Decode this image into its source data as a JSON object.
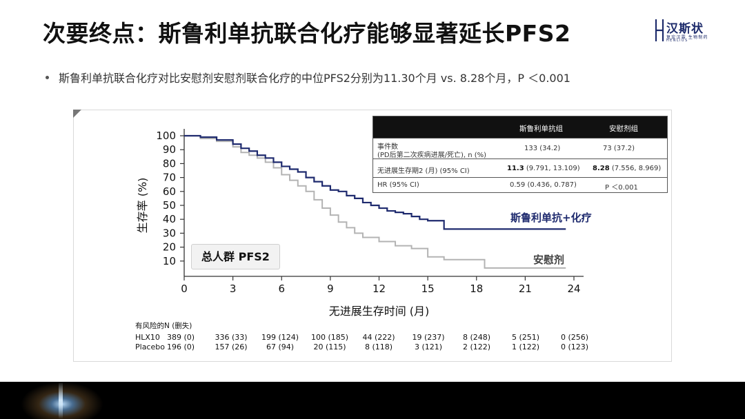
{
  "slide": {
    "title": "次要终点：斯鲁利单抗联合化疗能够显著延长PFS2",
    "bullet": "斯鲁利单抗联合化疗对比安慰剂安慰剂联合化疗的中位PFS2分别为11.30个月 vs. 8.28个月，P ＜0.001"
  },
  "logo": {
    "name": "汉斯状",
    "sub1": "复宏汉霖  生物制药",
    "sub2": "HENLIUS"
  },
  "stats_table": {
    "header": {
      "col1": "",
      "col2": "斯鲁利单抗组",
      "col3": "安慰剂组"
    },
    "rows": [
      {
        "label_line1": "事件数",
        "label_line2": "(PD后第二次疾病进展/死亡), n (%)",
        "col2": "133 (34.2)",
        "col3": "73 (37.2)"
      },
      {
        "label": "无进展生存期2 (月) (95% CI)",
        "col2_bold": "11.3",
        "col2_rest": " (9.791, 13.109)",
        "col3_bold": "8.28",
        "col3_rest": " (7.556, 8.969)"
      },
      {
        "label": "HR (95% CI)",
        "col2": "0.59 (0.436, 0.787)",
        "col3": "P ＜0.001"
      }
    ]
  },
  "overall_label": "总人群 PFS2",
  "risk_table": {
    "title": "有风险的N (删失)",
    "rows": [
      {
        "label": "HLX10",
        "values": [
          "389 (0)",
          "336 (33)",
          "199 (124)",
          "100 (185)",
          "44 (222)",
          "19 (237)",
          "8 (248)",
          "5 (251)",
          "0 (256)"
        ]
      },
      {
        "label": "Placebo",
        "values": [
          "196 (0)",
          "157 (26)",
          "67 (94)",
          "20 (115)",
          "8 (118)",
          "3 (121)",
          "2 (122)",
          "1 (122)",
          "0 (123)"
        ]
      }
    ]
  },
  "chart_data": {
    "type": "line",
    "step": true,
    "xlabel": "无进展生存时间 (月)",
    "ylabel": "生存率 (%)",
    "xlim": [
      0,
      24
    ],
    "ylim": [
      0,
      100
    ],
    "xticks": [
      0,
      3,
      6,
      9,
      12,
      15,
      18,
      21,
      24
    ],
    "yticks": [
      10,
      20,
      30,
      40,
      50,
      60,
      70,
      80,
      90,
      100
    ],
    "grid": false,
    "series": [
      {
        "name": "斯鲁利单抗+化疗",
        "color": "#1e2a6e",
        "x": [
          0,
          1.0,
          2.0,
          3.0,
          3.5,
          4.0,
          4.5,
          5.0,
          5.5,
          6.0,
          6.5,
          7.0,
          7.5,
          8.0,
          8.5,
          9.0,
          9.5,
          10.0,
          10.5,
          11.0,
          11.5,
          12.0,
          12.5,
          13.0,
          13.5,
          14.0,
          14.5,
          15.0,
          16.0,
          18.0,
          20.0,
          22.0,
          23.5
        ],
        "y": [
          100,
          99,
          97,
          94,
          91,
          89,
          86,
          84,
          81,
          78,
          76,
          74,
          70,
          67,
          64,
          61,
          60,
          57,
          55,
          52,
          50,
          48,
          46,
          45,
          44,
          42,
          40,
          39,
          33,
          33,
          33,
          33,
          33
        ]
      },
      {
        "name": "安慰剂",
        "color": "#b3b3b3",
        "x": [
          0,
          1.0,
          2.0,
          3.0,
          3.5,
          4.0,
          4.5,
          5.0,
          5.5,
          6.0,
          6.5,
          7.0,
          7.5,
          8.0,
          8.5,
          9.0,
          9.5,
          10.0,
          10.5,
          11.0,
          12.0,
          13.0,
          14.0,
          15.0,
          16.0,
          17.0,
          18.0,
          18.5,
          20.0,
          22.0,
          23.5
        ],
        "y": [
          100,
          98,
          96,
          92,
          88,
          86,
          84,
          81,
          77,
          72,
          68,
          64,
          60,
          54,
          48,
          43,
          38,
          34,
          30,
          27,
          24,
          21,
          19,
          13,
          11,
          11,
          11,
          5,
          5,
          5,
          5
        ]
      }
    ]
  }
}
